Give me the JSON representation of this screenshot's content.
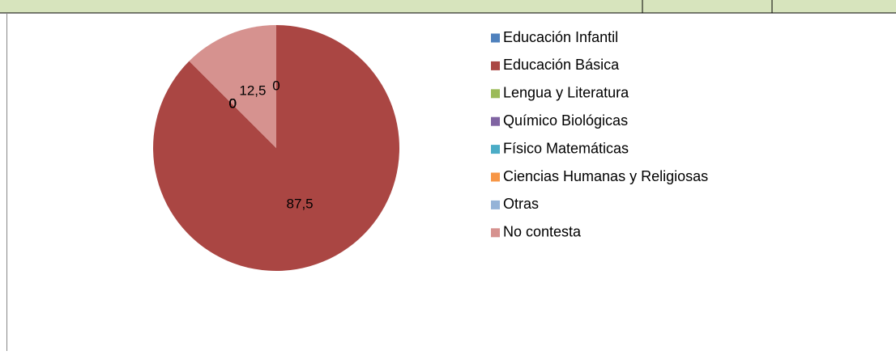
{
  "chart_data": {
    "type": "pie",
    "categories": [
      "Educación Infantil",
      "Educación Básica",
      "Lengua y Literatura",
      "Químico Biológicas",
      "Físico Matemáticas",
      "Ciencias Humanas y Religiosas",
      "Otras",
      "No contesta"
    ],
    "values": [
      0,
      87.5,
      0,
      0,
      0,
      0,
      0,
      12.5
    ],
    "value_labels": [
      "0",
      "87,5",
      "0",
      "0",
      "0",
      "0",
      "0",
      "12,5"
    ],
    "colors": [
      "#4f81bd",
      "#aa4643",
      "#9bbb59",
      "#8064a2",
      "#4bacc6",
      "#f79646",
      "#95b3d7",
      "#d6928f"
    ],
    "legend": "right"
  }
}
